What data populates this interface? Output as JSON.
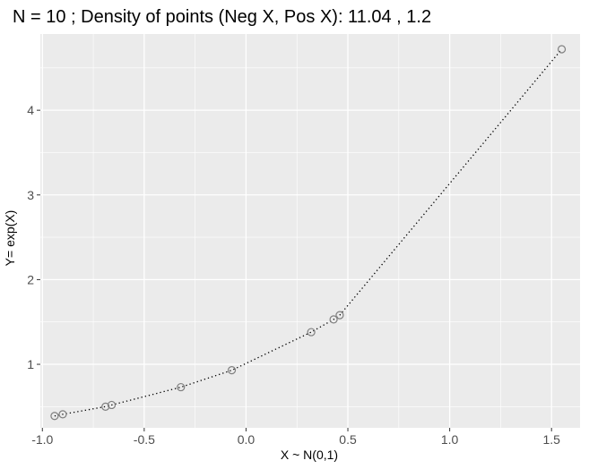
{
  "chart_data": {
    "type": "scatter",
    "title": "N =  10 ;  Density of points (Neg X, Pos X):  11.04 ,  1.2",
    "xlabel": "X ~ N(0,1)",
    "ylabel": "Y= exp(X)",
    "xlim": [
      -1.01,
      1.64
    ],
    "ylim": [
      0.25,
      4.9
    ],
    "x_ticks": [
      -1.0,
      -0.5,
      0.0,
      0.5,
      1.0,
      1.5
    ],
    "x_tick_labels": [
      "-1.0",
      "-0.5",
      "0.0",
      "0.5",
      "1.0",
      "1.5"
    ],
    "y_ticks": [
      1,
      2,
      3,
      4
    ],
    "y_tick_labels": [
      "1",
      "2",
      "3",
      "4"
    ],
    "grid": true,
    "line_style": "dotted",
    "colors": {
      "panel": "#ebebeb",
      "grid": "#ffffff",
      "points": "#7f7f7f",
      "line": "#000000"
    },
    "points": [
      {
        "x": -0.94,
        "y": 0.39
      },
      {
        "x": -0.9,
        "y": 0.41
      },
      {
        "x": -0.69,
        "y": 0.5
      },
      {
        "x": -0.66,
        "y": 0.52
      },
      {
        "x": -0.32,
        "y": 0.73
      },
      {
        "x": -0.07,
        "y": 0.93
      },
      {
        "x": 0.32,
        "y": 1.38
      },
      {
        "x": 0.43,
        "y": 1.53
      },
      {
        "x": 0.46,
        "y": 1.58
      },
      {
        "x": 1.55,
        "y": 4.72
      }
    ]
  }
}
